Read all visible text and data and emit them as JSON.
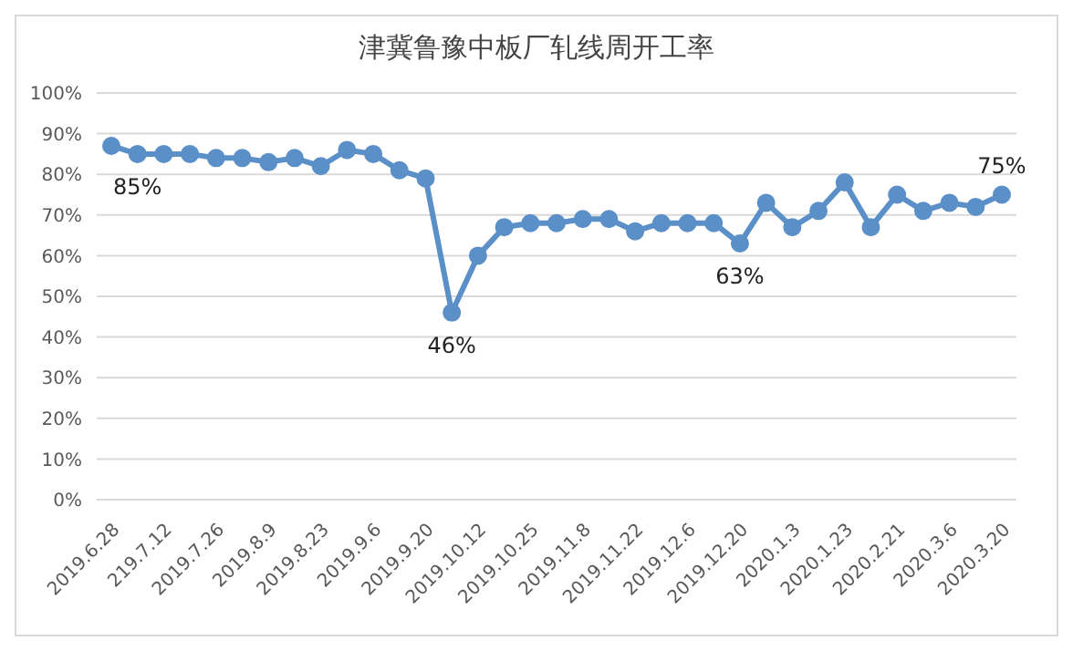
{
  "chart_data": {
    "type": "line",
    "title": "津冀鲁豫中板厂轧线周开工率",
    "categories": [
      "2019.6.28",
      null,
      "219.7.12",
      null,
      "2019.7.26",
      null,
      "2019.8.9",
      null,
      "2019.8.23",
      null,
      "2019.9.6",
      null,
      "2019.9.20",
      null,
      "2019.10.12",
      null,
      "2019.10.25",
      null,
      "2019.11.8",
      null,
      "2019.11.22",
      null,
      "2019.12.6",
      null,
      "2019.12.20",
      null,
      "2020.1.3",
      null,
      "2020.1.23",
      null,
      "2020.2.21",
      null,
      "2020.3.6",
      null,
      "2020.3.20"
    ],
    "series": [
      {
        "color": "#5b8fc8",
        "values": [
          87,
          85,
          85,
          85,
          84,
          84,
          83,
          84,
          82,
          86,
          85,
          81,
          79,
          46,
          60,
          67,
          68,
          68,
          69,
          69,
          66,
          68,
          68,
          68,
          63,
          73,
          67,
          71,
          78,
          67,
          75,
          71,
          73,
          72,
          75
        ],
        "value_labels": [
          null,
          "85%",
          null,
          null,
          null,
          null,
          null,
          null,
          null,
          null,
          null,
          null,
          null,
          "46%",
          null,
          null,
          null,
          null,
          null,
          null,
          null,
          null,
          null,
          null,
          "63%",
          null,
          null,
          null,
          null,
          null,
          null,
          null,
          null,
          null,
          "75%"
        ]
      }
    ],
    "ylim": [
      0,
      100
    ],
    "yticks": [
      {
        "value": 0,
        "label": "0%"
      },
      {
        "value": 10,
        "label": "10%"
      },
      {
        "value": 20,
        "label": "20%"
      },
      {
        "value": 30,
        "label": "30%"
      },
      {
        "value": 40,
        "label": "40%"
      },
      {
        "value": 50,
        "label": "50%"
      },
      {
        "value": 60,
        "label": "60%"
      },
      {
        "value": 70,
        "label": "70%"
      },
      {
        "value": 80,
        "label": "80%"
      },
      {
        "value": 90,
        "label": "90%"
      },
      {
        "value": 100,
        "label": "100%"
      }
    ],
    "grid": "y",
    "marker": "circle",
    "line_style": "solid",
    "legend": false
  }
}
